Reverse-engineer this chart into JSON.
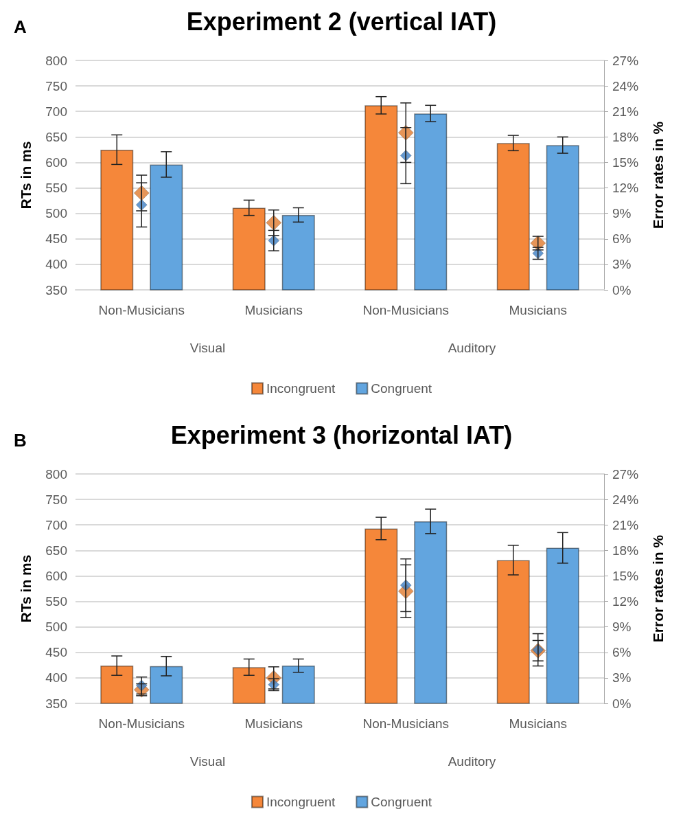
{
  "chart_data": [
    {
      "type": "bar",
      "title": "Experiment 2 (vertical IAT)",
      "ylabel": "RTs in ms",
      "y2label": "Error rates in %",
      "annotations": [
        "A",
        "Visual",
        "Auditory"
      ],
      "categories": [
        "Non-Musicians",
        "Musicians",
        "Non-Musicians",
        "Musicians"
      ],
      "series": [
        {
          "name": "Incongruent",
          "color": "#f5873a",
          "values": [
            625,
            511,
            712,
            638
          ],
          "errors": [
            29,
            15,
            17,
            15
          ]
        },
        {
          "name": "Congruent",
          "color": "#62a5df",
          "values": [
            596,
            497,
            696,
            634
          ],
          "errors": [
            25,
            14,
            16,
            16
          ]
        },
        {
          "type": "scatter",
          "axis": "y2",
          "color": "#e07b2e",
          "values": [
            11.4,
            7.9,
            18.5,
            5.5
          ],
          "errors": [
            2.1,
            1.5,
            3.5,
            0.8
          ]
        },
        {
          "type": "scatter",
          "axis": "y2",
          "color": "#3f7fc4",
          "values": [
            10.0,
            5.8,
            15.8,
            4.3
          ],
          "errors": [
            2.6,
            1.2,
            3.3,
            0.7
          ]
        }
      ],
      "ylim": [
        350,
        800
      ],
      "yticks": [
        350,
        400,
        450,
        500,
        550,
        600,
        650,
        700,
        750,
        800
      ],
      "y2lim": [
        0,
        27
      ],
      "y2ticks": [
        {
          "value": 0,
          "label": "0%"
        },
        {
          "value": 3,
          "label": "3%"
        },
        {
          "value": 6,
          "label": "6%"
        },
        {
          "value": 9,
          "label": "9%"
        },
        {
          "value": 12,
          "label": "12%"
        },
        {
          "value": 15,
          "label": "15%"
        },
        {
          "value": 18,
          "label": "18%"
        },
        {
          "value": 21,
          "label": "21%"
        },
        {
          "value": 24,
          "label": "24%"
        },
        {
          "value": 27,
          "label": "27%"
        }
      ],
      "grid": "y",
      "legend": "bottom",
      "marker": "diamond"
    },
    {
      "type": "bar",
      "title": "Experiment 3 (horizontal IAT)",
      "ylabel": "RTs in ms",
      "y2label": "Error rates in %",
      "annotations": [
        "B",
        "Visual",
        "Auditory"
      ],
      "categories": [
        "Non-Musicians",
        "Musicians",
        "Non-Musicians",
        "Musicians"
      ],
      "series": [
        {
          "name": "Incongruent",
          "color": "#f5873a",
          "values": [
            424,
            421,
            693,
            631
          ],
          "errors": [
            19,
            16,
            22,
            29
          ]
        },
        {
          "name": "Congruent",
          "color": "#62a5df",
          "values": [
            423,
            424,
            707,
            655
          ],
          "errors": [
            19,
            13,
            24,
            30
          ]
        },
        {
          "type": "scatter",
          "axis": "y2",
          "color": "#e07b2e",
          "values": [
            1.6,
            3.0,
            13.2,
            6.2
          ],
          "errors": [
            0.7,
            1.3,
            3.1,
            1.2
          ]
        },
        {
          "type": "scatter",
          "axis": "y2",
          "color": "#3f7fc4",
          "values": [
            2.1,
            2.2,
            13.9,
            6.3
          ],
          "errors": [
            1.0,
            0.7,
            3.1,
            1.9
          ]
        }
      ],
      "ylim": [
        350,
        800
      ],
      "yticks": [
        350,
        400,
        450,
        500,
        550,
        600,
        650,
        700,
        750,
        800
      ],
      "y2lim": [
        0,
        27
      ],
      "y2ticks": [
        {
          "value": 0,
          "label": "0%"
        },
        {
          "value": 3,
          "label": "3%"
        },
        {
          "value": 6,
          "label": "6%"
        },
        {
          "value": 9,
          "label": "9%"
        },
        {
          "value": 12,
          "label": "12%"
        },
        {
          "value": 15,
          "label": "15%"
        },
        {
          "value": 18,
          "label": "18%"
        },
        {
          "value": 21,
          "label": "21%"
        },
        {
          "value": 24,
          "label": "24%"
        },
        {
          "value": 27,
          "label": "27%"
        }
      ],
      "grid": "y",
      "legend": "bottom",
      "marker": "diamond"
    }
  ]
}
